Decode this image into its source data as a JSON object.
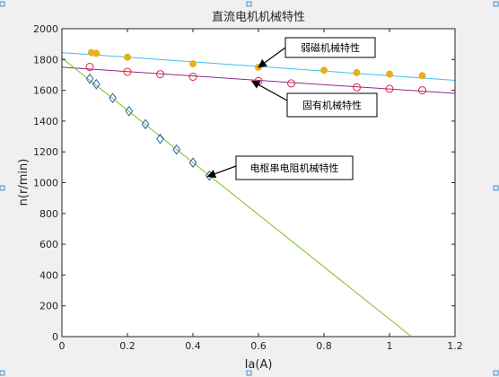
{
  "chart_data": {
    "type": "scatter",
    "title": "直流电机机械特性",
    "xlabel": "Ia(A)",
    "ylabel": "n(r/min)",
    "xlim": [
      0,
      1.2
    ],
    "ylim": [
      0,
      2000
    ],
    "xticks": [
      "0",
      "0.2",
      "0.4",
      "0.6",
      "0.8",
      "1",
      "1.2"
    ],
    "yticks": [
      "0",
      "200",
      "400",
      "600",
      "800",
      "1000",
      "1200",
      "1400",
      "1600",
      "1800",
      "2000"
    ],
    "grid": false,
    "series": [
      {
        "color": "#e8b020",
        "marker": "filled-circle",
        "x": [
          0.09,
          0.105,
          0.2,
          0.4,
          0.6,
          0.8,
          0.9,
          1.0,
          1.1
        ],
        "y": [
          1845,
          1840,
          1815,
          1772,
          1750,
          1730,
          1715,
          1705,
          1695
        ],
        "fit_line": {
          "color": "#3fc0ef",
          "x": [
            0,
            1.2
          ],
          "y": [
            1845,
            1665
          ]
        }
      },
      {
        "color": "#e8203a",
        "marker": "open-circle",
        "x": [
          0.085,
          0.2,
          0.3,
          0.4,
          0.6,
          0.7,
          0.9,
          1.0,
          1.1
        ],
        "y": [
          1752,
          1720,
          1705,
          1688,
          1660,
          1645,
          1620,
          1610,
          1600
        ],
        "fit_line": {
          "color": "#8c2a8c",
          "x": [
            0,
            1.2
          ],
          "y": [
            1750,
            1580
          ]
        }
      },
      {
        "color": "#1f5fbf",
        "marker": "open-diamond",
        "x": [
          0.085,
          0.105,
          0.155,
          0.205,
          0.255,
          0.3,
          0.35,
          0.4,
          0.45
        ],
        "y": [
          1675,
          1640,
          1550,
          1465,
          1380,
          1285,
          1215,
          1130,
          1045
        ],
        "fit_line": {
          "color": "#7fbf1f",
          "x": [
            0,
            1.067
          ],
          "y": [
            1810,
            0
          ]
        }
      }
    ],
    "annotations": [
      {
        "text": "弱磁机械特性",
        "arrow_to": [
          0.6,
          1750
        ]
      },
      {
        "text": "固有机械特性",
        "arrow_to": [
          0.58,
          1660
        ]
      },
      {
        "text": "电枢串电阻机械特性",
        "arrow_to": [
          0.445,
          1040
        ]
      }
    ]
  }
}
